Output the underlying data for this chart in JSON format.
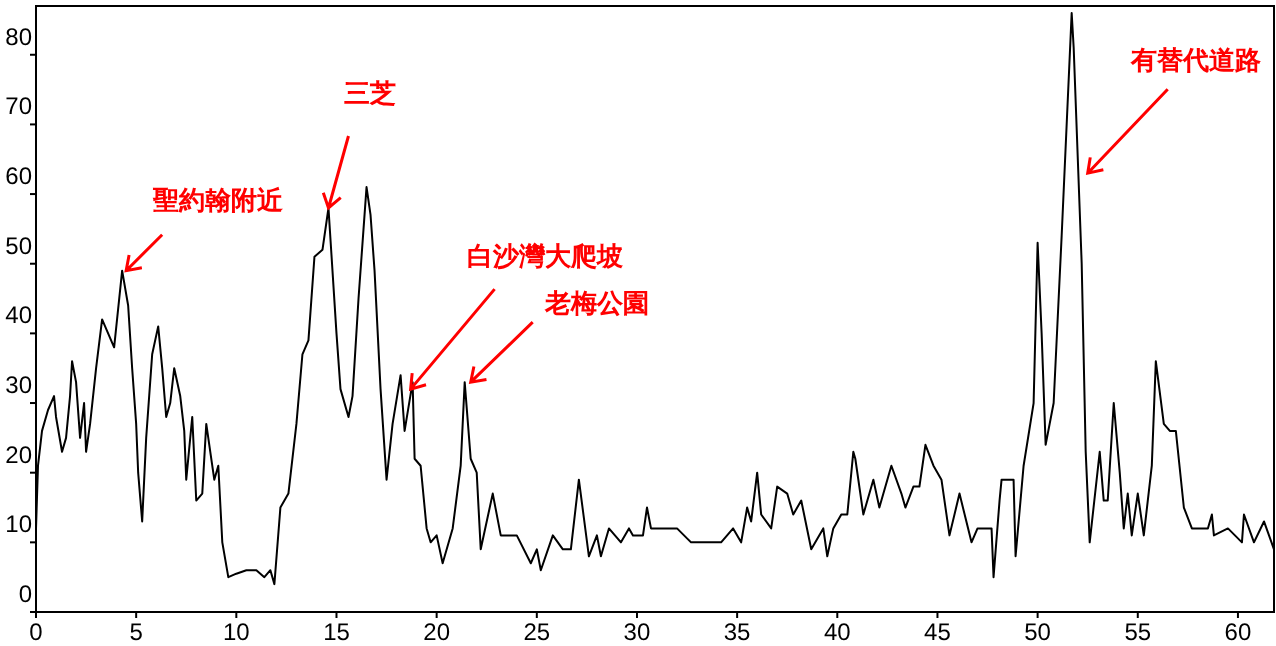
{
  "chart_data": {
    "type": "line",
    "x": [
      0,
      0.1,
      0.3,
      0.6,
      0.9,
      1.0,
      1.3,
      1.5,
      1.7,
      1.8,
      2.0,
      2.2,
      2.4,
      2.5,
      2.7,
      3.0,
      3.3,
      3.6,
      3.9,
      4.3,
      4.6,
      4.8,
      5.0,
      5.1,
      5.3,
      5.5,
      5.8,
      6.1,
      6.3,
      6.5,
      6.7,
      6.9,
      7.2,
      7.4,
      7.5,
      7.8,
      8.0,
      8.3,
      8.5,
      8.7,
      8.9,
      9.1,
      9.3,
      9.6,
      10.0,
      10.5,
      11.0,
      11.4,
      11.7,
      11.9,
      12.2,
      12.6,
      13.0,
      13.3,
      13.6,
      13.9,
      14.3,
      14.6,
      15.0,
      15.2,
      15.6,
      15.8,
      16.1,
      16.5,
      16.7,
      16.9,
      17.2,
      17.5,
      17.8,
      18.2,
      18.4,
      18.8,
      18.9,
      19.2,
      19.5,
      19.7,
      20.0,
      20.3,
      20.8,
      21.2,
      21.4,
      21.7,
      22.0,
      22.2,
      22.8,
      23.2,
      24.0,
      24.7,
      25.0,
      25.2,
      25.8,
      26.3,
      26.7,
      27.1,
      27.6,
      28.0,
      28.2,
      28.6,
      29.2,
      29.6,
      29.8,
      30.3,
      30.5,
      30.7,
      32.0,
      32.7,
      34.2,
      34.8,
      35.2,
      35.5,
      35.7,
      36.0,
      36.2,
      36.7,
      37.0,
      37.5,
      37.8,
      38.2,
      38.7,
      39.3,
      39.5,
      39.8,
      40.2,
      40.5,
      40.8,
      40.9,
      41.3,
      41.8,
      42.1,
      42.7,
      43.2,
      43.4,
      43.8,
      44.1,
      44.4,
      44.8,
      45.2,
      45.6,
      46.1,
      46.7,
      47.0,
      47.7,
      47.8,
      48.1,
      48.2,
      48.8,
      48.9,
      49.3,
      49.8,
      50.0,
      50.2,
      50.4,
      50.8,
      51.2,
      51.7,
      51.8,
      52.2,
      52.4,
      52.6,
      53.1,
      53.3,
      53.5,
      53.8,
      54.1,
      54.3,
      54.5,
      54.7,
      55.0,
      55.3,
      55.7,
      55.9,
      56.3,
      56.6,
      56.9,
      57.3,
      57.7,
      58.5,
      58.7,
      58.8,
      59.5,
      60.2,
      60.3,
      60.8,
      61.3,
      61.8
    ],
    "series": [
      {
        "color": "#000000",
        "values": [
          12,
          21,
          26,
          29,
          31,
          28,
          23,
          25,
          31,
          36,
          33,
          25,
          30,
          23,
          27,
          35,
          42,
          40,
          38,
          49,
          44,
          35,
          27,
          20,
          13,
          25,
          37,
          41,
          35,
          28,
          30,
          35,
          31,
          26,
          19,
          28,
          16,
          17,
          27,
          23,
          19,
          21,
          10,
          5,
          5.5,
          6,
          6,
          5,
          6,
          4,
          15,
          17,
          27,
          37,
          39,
          51,
          52,
          58,
          40,
          32,
          28,
          31,
          45,
          61,
          57,
          49,
          32,
          19,
          27,
          34,
          26,
          33,
          22,
          21,
          12,
          10,
          11,
          7,
          12,
          21,
          33,
          22,
          20,
          9,
          17,
          11,
          11,
          7,
          9,
          6,
          11,
          9,
          9,
          19,
          8,
          11,
          8,
          12,
          10,
          12,
          11,
          11,
          15,
          12,
          12,
          10,
          10,
          12,
          10,
          15,
          13,
          20,
          14,
          12,
          18,
          17,
          14,
          16,
          9,
          12,
          8,
          12,
          14,
          14,
          23,
          22,
          14,
          19,
          15,
          21,
          17,
          15,
          18,
          18,
          24,
          21,
          19,
          11,
          17,
          10,
          12,
          12,
          5,
          16,
          19,
          19,
          8,
          21,
          30,
          53,
          40,
          24,
          30,
          54,
          86,
          81,
          50,
          23,
          10,
          23,
          16,
          16,
          30,
          20,
          12,
          17,
          11,
          17,
          11,
          21,
          36,
          27,
          26,
          26,
          15,
          12,
          12,
          14,
          11,
          12,
          10,
          14,
          10,
          13,
          9
        ]
      }
    ],
    "xlim": [
      0,
      61.8
    ],
    "ylim": [
      0,
      87
    ],
    "xticks": [
      0,
      5,
      10,
      15,
      20,
      25,
      30,
      35,
      40,
      45,
      50,
      55,
      60
    ],
    "yticks": [
      0,
      10,
      20,
      30,
      40,
      50,
      60,
      70,
      80
    ],
    "grid": false,
    "marker": "none",
    "annotations": [
      {
        "text": "聖約翰附近",
        "x": 4.5,
        "y": 49
      },
      {
        "text": "三芝",
        "x": 14.6,
        "y": 58
      },
      {
        "text": "白沙灣大爬坡",
        "x": 18.7,
        "y": 32
      },
      {
        "text": "老梅公園",
        "x": 21.7,
        "y": 33
      },
      {
        "text": "有替代道路",
        "x": 52.5,
        "y": 63
      }
    ]
  }
}
